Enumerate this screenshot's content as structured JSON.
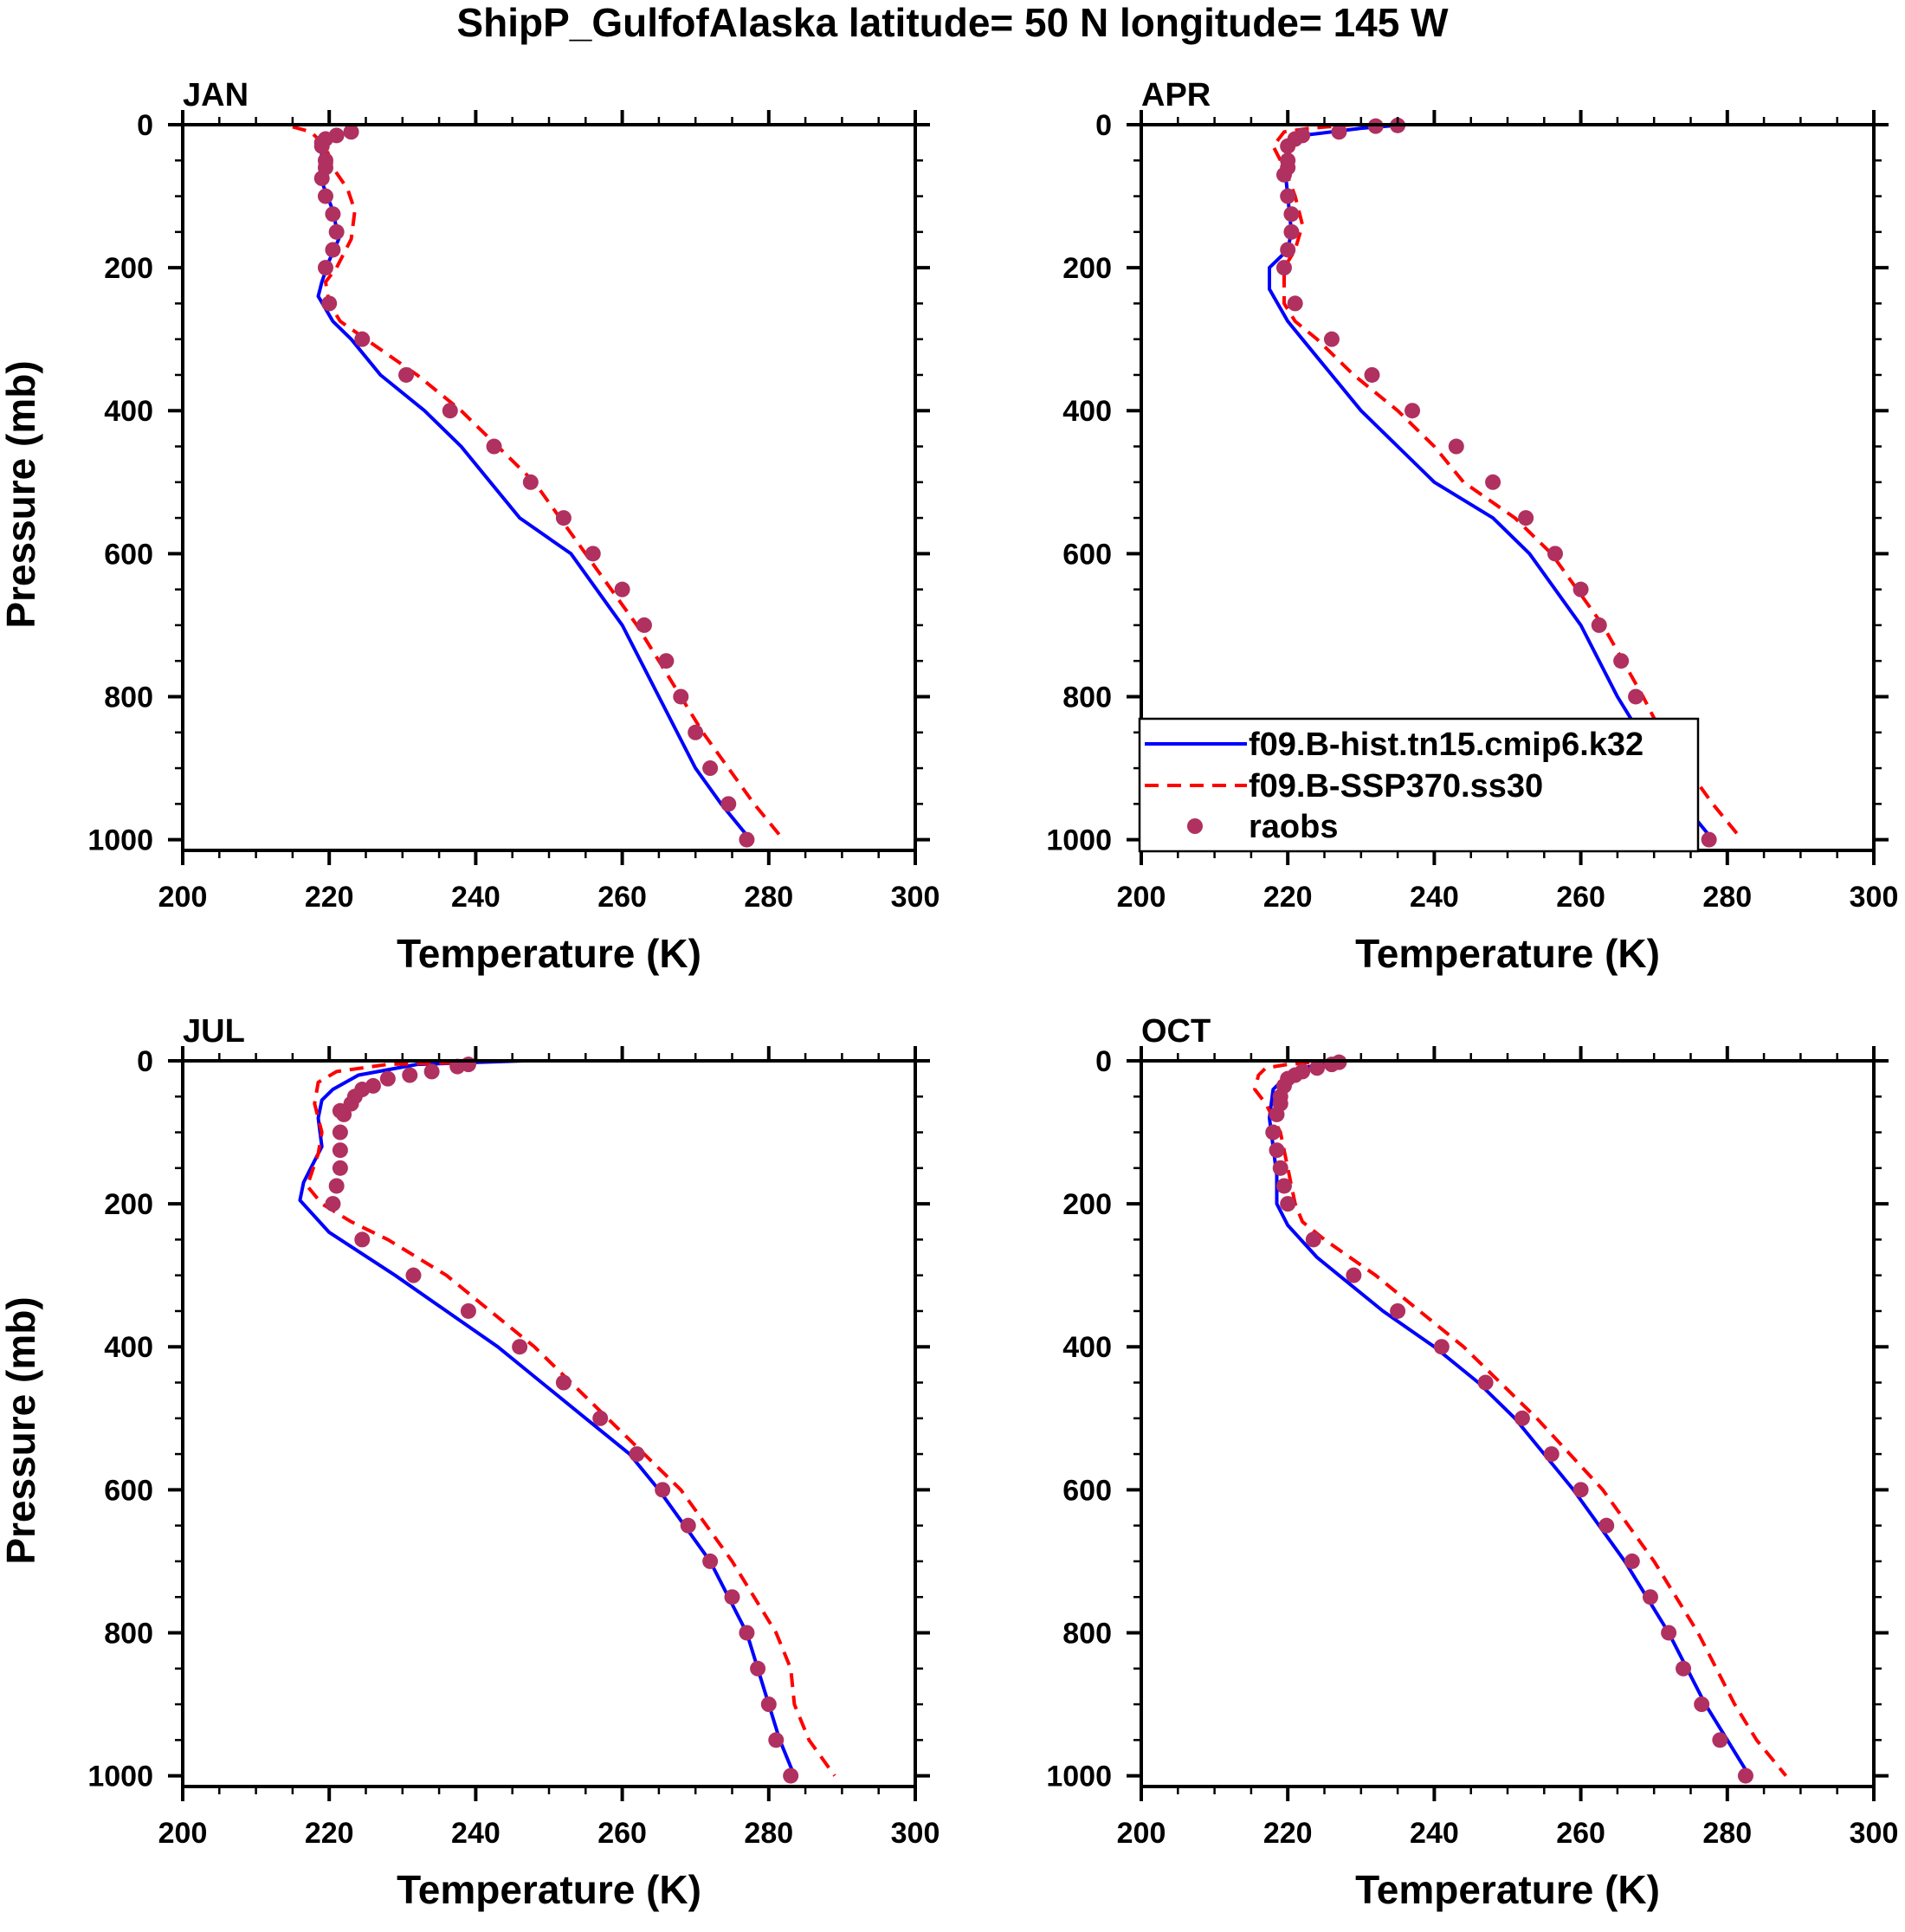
{
  "title": "ShipP_GulfofAlaska  latitude= 50 N longitude= 145 W",
  "legend": {
    "placement": "bottom-right of APR panel",
    "entries": [
      {
        "label": "f09.B-hist.tn15.cmip6.k32",
        "color": "#0000ff",
        "style": "solid"
      },
      {
        "label": "f09.B-SSP370.ss30",
        "color": "#ff0000",
        "style": "dashed"
      },
      {
        "label": "raobs",
        "color": "#b03060",
        "style": "dot"
      }
    ]
  },
  "chart_data": [
    {
      "type": "line",
      "title": "JAN",
      "xlabel": "Temperature (K)",
      "ylabel": "Pressure (mb)",
      "xlim": [
        200,
        300
      ],
      "ylim": [
        0,
        1015
      ],
      "y_inverted": true,
      "xticks": [
        "200",
        "220",
        "240",
        "260",
        "280",
        "300"
      ],
      "yticks": [
        "0",
        "200",
        "400",
        "600",
        "800",
        "1000"
      ],
      "series": [
        {
          "name": "f09.B-hist.tn15.cmip6.k32",
          "p": [
            5,
            10,
            20,
            40,
            60,
            80,
            120,
            160,
            190,
            220,
            240,
            275,
            300,
            350,
            400,
            450,
            500,
            550,
            600,
            700,
            800,
            900,
            950,
            1000
          ],
          "t": [
            221,
            221,
            220,
            219,
            218.7,
            219,
            220.5,
            221.3,
            220,
            219,
            218.5,
            220.5,
            223,
            227,
            233,
            238,
            242,
            246,
            253,
            260,
            265,
            270,
            273.5,
            277.5
          ]
        },
        {
          "name": "f09.B-SSP370.ss30",
          "p": [
            3,
            10,
            30,
            60,
            90,
            120,
            160,
            200,
            220,
            250,
            275,
            300,
            350,
            400,
            450,
            500,
            600,
            700,
            800,
            850,
            900,
            950,
            1000
          ],
          "t": [
            215,
            217.5,
            219.5,
            220.5,
            222.5,
            223.5,
            223,
            221,
            219.5,
            220,
            221.5,
            225,
            232,
            238,
            243,
            248,
            255,
            262,
            268,
            271,
            274.5,
            278,
            282
          ]
        },
        {
          "name": "raobs",
          "p": [
            10,
            15,
            20,
            25,
            30,
            50,
            60,
            75,
            100,
            125,
            150,
            175,
            200,
            250,
            300,
            350,
            400,
            450,
            500,
            550,
            600,
            650,
            700,
            750,
            800,
            850,
            900,
            950,
            1000
          ],
          "t": [
            223,
            221,
            219.5,
            219,
            219,
            219.5,
            219.5,
            219,
            219.5,
            220.5,
            221,
            220.5,
            219.5,
            220,
            224.5,
            230.5,
            236.5,
            242.5,
            247.5,
            252,
            256,
            260,
            263,
            266,
            268,
            270,
            272,
            274.5,
            277
          ]
        }
      ]
    },
    {
      "type": "line",
      "title": "APR",
      "xlabel": "Temperature (K)",
      "ylabel": "",
      "xlim": [
        200,
        300
      ],
      "ylim": [
        0,
        1015
      ],
      "y_inverted": true,
      "xticks": [
        "200",
        "220",
        "240",
        "260",
        "280",
        "300"
      ],
      "yticks": [
        "0",
        "200",
        "400",
        "600",
        "800",
        "1000"
      ],
      "series": [
        {
          "name": "f09.B-hist.tn15.cmip6.k32",
          "p": [
            0,
            5,
            15,
            30,
            50,
            100,
            150,
            175,
            200,
            230,
            275,
            300,
            350,
            400,
            450,
            500,
            550,
            600,
            700,
            800,
            850,
            900,
            950,
            1000
          ],
          "t": [
            236,
            230,
            222,
            220.5,
            219.5,
            220,
            220.5,
            220,
            217.5,
            217.5,
            220,
            222,
            226,
            230,
            235,
            240,
            248,
            253,
            260,
            265,
            268,
            270.5,
            274,
            278
          ]
        },
        {
          "name": "f09.B-SSP370.ss30",
          "p": [
            0,
            5,
            10,
            30,
            60,
            100,
            140,
            175,
            200,
            250,
            275,
            300,
            350,
            400,
            450,
            500,
            550,
            600,
            700,
            800,
            850,
            900,
            950,
            1000
          ],
          "t": [
            229,
            223,
            219.5,
            218,
            219.5,
            221,
            222,
            221,
            219.5,
            219.5,
            221,
            224,
            229,
            235,
            240,
            244,
            251,
            256,
            263,
            268.5,
            271,
            274.5,
            278,
            282
          ]
        },
        {
          "name": "raobs",
          "p": [
            1,
            2,
            10,
            15,
            20,
            30,
            50,
            60,
            70,
            100,
            125,
            150,
            175,
            200,
            250,
            300,
            350,
            400,
            450,
            500,
            550,
            600,
            650,
            700,
            750,
            800,
            850,
            900,
            950,
            1000
          ],
          "t": [
            235,
            232,
            227,
            222,
            221,
            220,
            220,
            220,
            219.5,
            220,
            220.5,
            220.5,
            220,
            219.5,
            221,
            226,
            231.5,
            237,
            243,
            248,
            252.5,
            256.5,
            260,
            262.5,
            265.5,
            267.5,
            270,
            272,
            274.5,
            277.5
          ]
        }
      ]
    },
    {
      "type": "line",
      "title": "JUL",
      "xlabel": "Temperature (K)",
      "ylabel": "Pressure (mb)",
      "xlim": [
        200,
        300
      ],
      "ylim": [
        0,
        1015
      ],
      "y_inverted": true,
      "xticks": [
        "200",
        "220",
        "240",
        "260",
        "280",
        "300"
      ],
      "yticks": [
        "0",
        "200",
        "400",
        "600",
        "800",
        "1000"
      ],
      "series": [
        {
          "name": "f09.B-hist.tn15.cmip6.k32",
          "p": [
            0,
            5,
            20,
            40,
            55,
            80,
            120,
            150,
            170,
            195,
            240,
            300,
            350,
            400,
            450,
            500,
            550,
            600,
            700,
            800,
            900,
            950,
            1000
          ],
          "t": [
            246.5,
            232,
            224,
            220.5,
            219,
            218.5,
            219,
            217.5,
            216.5,
            216,
            220,
            229,
            236,
            243,
            249,
            255,
            261,
            265,
            272,
            277,
            280,
            281.5,
            283.5
          ]
        },
        {
          "name": "f09.B-SSP370.ss30",
          "p": [
            2,
            5,
            15,
            30,
            60,
            100,
            130,
            160,
            175,
            200,
            225,
            250,
            300,
            350,
            400,
            450,
            500,
            550,
            600,
            700,
            800,
            850,
            900,
            950,
            1000
          ],
          "t": [
            240,
            228,
            221,
            218.5,
            218,
            219,
            218.5,
            217.5,
            217,
            219,
            223,
            228,
            236,
            242,
            248,
            253,
            258,
            263,
            268,
            275,
            281,
            283,
            283.5,
            285.5,
            289
          ]
        },
        {
          "name": "raobs",
          "p": [
            5,
            8,
            15,
            20,
            25,
            35,
            40,
            50,
            60,
            70,
            75,
            100,
            125,
            150,
            175,
            200,
            250,
            300,
            350,
            400,
            450,
            500,
            550,
            600,
            650,
            700,
            750,
            800,
            850,
            900,
            950,
            1000
          ],
          "t": [
            239,
            237.5,
            234,
            231,
            228,
            226,
            224.5,
            223.5,
            223,
            221.5,
            222,
            221.5,
            221.5,
            221.5,
            221,
            220.5,
            224.5,
            231.5,
            239,
            246,
            252,
            257,
            262,
            265.5,
            269,
            272,
            275,
            277,
            278.5,
            280,
            281,
            283
          ]
        }
      ]
    },
    {
      "type": "line",
      "title": "OCT",
      "xlabel": "Temperature (K)",
      "ylabel": "",
      "xlim": [
        200,
        300
      ],
      "ylim": [
        0,
        1015
      ],
      "y_inverted": true,
      "xticks": [
        "200",
        "220",
        "240",
        "260",
        "280",
        "300"
      ],
      "yticks": [
        "0",
        "200",
        "400",
        "600",
        "800",
        "1000"
      ],
      "series": [
        {
          "name": "f09.B-hist.tn15.cmip6.k32",
          "p": [
            0,
            10,
            20,
            40,
            80,
            120,
            160,
            200,
            230,
            275,
            300,
            350,
            400,
            450,
            500,
            600,
            700,
            800,
            900,
            950,
            1000
          ],
          "t": [
            227,
            222,
            220,
            218,
            217.5,
            218,
            218.5,
            218.5,
            220,
            224,
            227,
            233,
            240,
            246,
            251,
            259,
            266,
            272,
            277,
            280,
            283
          ]
        },
        {
          "name": "f09.B-SSP370.ss30",
          "p": [
            0,
            5,
            10,
            20,
            40,
            60,
            100,
            150,
            200,
            225,
            250,
            300,
            350,
            400,
            450,
            500,
            600,
            700,
            800,
            900,
            950,
            1000
          ],
          "t": [
            226,
            220,
            217,
            216,
            215.5,
            217,
            219,
            220,
            221,
            222,
            225,
            232,
            238,
            244,
            249,
            254,
            263,
            270,
            276,
            281,
            284,
            288
          ]
        },
        {
          "name": "raobs",
          "p": [
            2,
            5,
            10,
            15,
            20,
            25,
            35,
            50,
            60,
            75,
            100,
            125,
            150,
            175,
            200,
            250,
            300,
            350,
            400,
            450,
            500,
            550,
            600,
            650,
            700,
            750,
            800,
            850,
            900,
            950,
            1000
          ],
          "t": [
            227,
            226,
            224,
            222,
            221,
            220,
            219.5,
            219,
            219,
            218.5,
            218,
            218.5,
            219,
            219.5,
            220,
            223.5,
            229,
            235,
            241,
            247,
            252,
            256,
            260,
            263.5,
            267,
            269.5,
            272,
            274,
            276.5,
            279,
            282.5
          ]
        }
      ]
    }
  ]
}
